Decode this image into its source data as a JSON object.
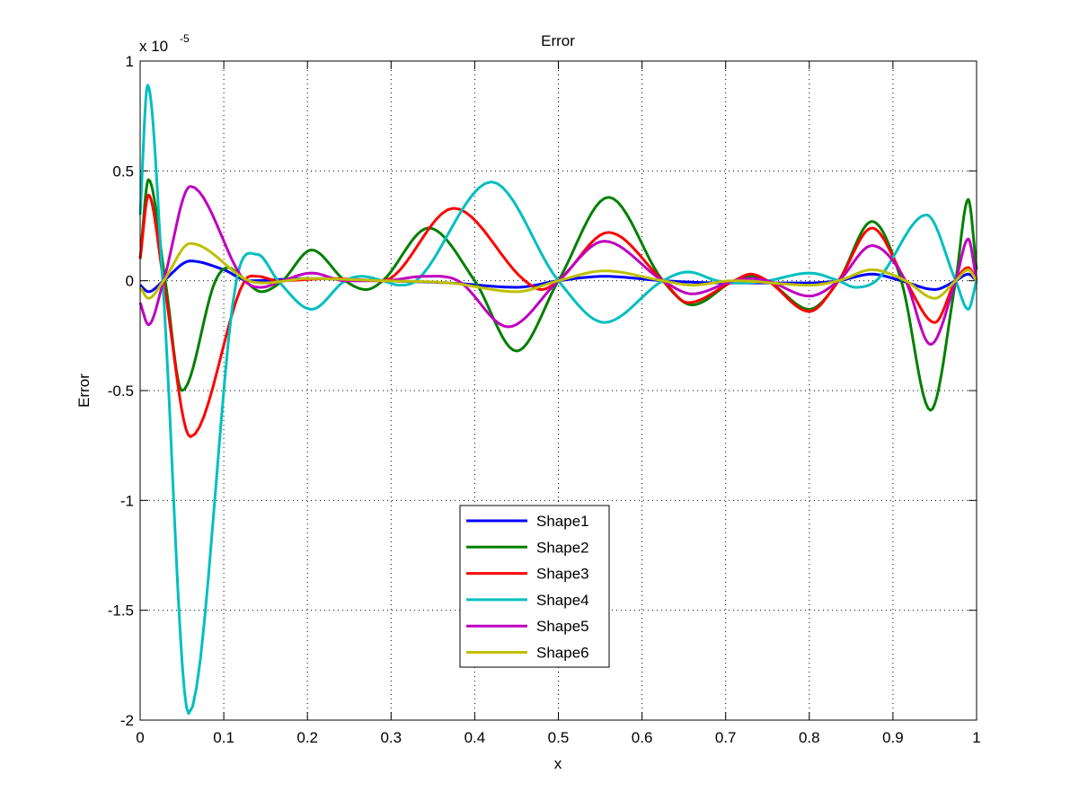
{
  "chart_data": {
    "type": "line",
    "title": "Error",
    "xlabel": "x",
    "ylabel": "Error",
    "y_exponent_base": "x 10",
    "y_exponent_power": "-5",
    "xlim": [
      0,
      1
    ],
    "ylim": [
      -2,
      1
    ],
    "y_units_scale": 1e-05,
    "grid": true,
    "legend_position": "bottom-center",
    "xticks": [
      0,
      0.1,
      0.2,
      0.3,
      0.4,
      0.5,
      0.6,
      0.7,
      0.8,
      0.9,
      1
    ],
    "xtick_labels": [
      "0",
      "0.1",
      "0.2",
      "0.3",
      "0.4",
      "0.5",
      "0.6",
      "0.7",
      "0.8",
      "0.9",
      "1"
    ],
    "yticks": [
      -2,
      -1.5,
      -1,
      -0.5,
      0,
      0.5,
      1
    ],
    "ytick_labels": [
      "-2",
      "-1.5",
      "-1",
      "-0.5",
      "0",
      "0.5",
      "1"
    ],
    "series": [
      {
        "name": "Shape1",
        "color": "#0000ff",
        "x": [
          0,
          0.01,
          0.028,
          0.06,
          0.1,
          0.13,
          0.2,
          0.29,
          0.37,
          0.45,
          0.5,
          0.555,
          0.625,
          0.7,
          0.8,
          0.835,
          0.875,
          0.91,
          0.95,
          0.975,
          0.99,
          1
        ],
        "y": [
          -0.02,
          -0.05,
          0,
          0.09,
          0.05,
          0,
          0.01,
          0,
          -0.01,
          -0.03,
          0,
          0.02,
          0,
          -0.01,
          -0.01,
          0,
          0.03,
          0,
          -0.04,
          0,
          0.03,
          0
        ]
      },
      {
        "name": "Shape2",
        "color": "#008000",
        "x": [
          0,
          0.01,
          0.03,
          0.05,
          0.09,
          0.105,
          0.125,
          0.145,
          0.17,
          0.205,
          0.245,
          0.27,
          0.29,
          0.345,
          0.4,
          0.45,
          0.5,
          0.56,
          0.625,
          0.66,
          0.71,
          0.73,
          0.75,
          0.8,
          0.835,
          0.875,
          0.91,
          0.945,
          0.975,
          0.99,
          1
        ],
        "y": [
          0.1,
          0.46,
          0,
          -0.5,
          0,
          0.06,
          0,
          -0.05,
          0,
          0.14,
          0,
          -0.04,
          0,
          0.24,
          0,
          -0.32,
          0,
          0.38,
          0,
          -0.11,
          0,
          0.02,
          0,
          -0.13,
          0,
          0.27,
          0,
          -0.59,
          0,
          0.37,
          0.05
        ]
      },
      {
        "name": "Shape3",
        "color": "#ff0000",
        "x": [
          0,
          0.01,
          0.028,
          0.06,
          0.125,
          0.14,
          0.165,
          0.23,
          0.29,
          0.375,
          0.46,
          0.48,
          0.5,
          0.56,
          0.625,
          0.655,
          0.71,
          0.73,
          0.75,
          0.8,
          0.835,
          0.875,
          0.915,
          0.95,
          0.975,
          0.99,
          1
        ],
        "y": [
          0.1,
          0.39,
          0,
          -0.71,
          0,
          0.02,
          0,
          0.01,
          0,
          0.33,
          0,
          -0.04,
          0,
          0.22,
          0,
          -0.1,
          0,
          0.03,
          0,
          -0.14,
          0,
          0.24,
          0,
          -0.19,
          0,
          0.06,
          0
        ]
      },
      {
        "name": "Shape4",
        "color": "#00bfbf",
        "x": [
          0,
          0.009,
          0.027,
          0.058,
          0.115,
          0.14,
          0.165,
          0.205,
          0.245,
          0.265,
          0.29,
          0.31,
          0.33,
          0.42,
          0.5,
          0.555,
          0.625,
          0.655,
          0.69,
          0.72,
          0.75,
          0.8,
          0.835,
          0.855,
          0.88,
          0.94,
          0.975,
          0.99,
          1
        ],
        "y": [
          0.3,
          0.89,
          0,
          -1.97,
          0,
          0.12,
          0,
          -0.13,
          0,
          0.02,
          0,
          -0.02,
          0,
          0.45,
          0,
          -0.19,
          0,
          0.04,
          0,
          -0.01,
          0,
          0.035,
          0,
          -0.03,
          0,
          0.3,
          0,
          -0.13,
          0
        ]
      },
      {
        "name": "Shape5",
        "color": "#bf00bf",
        "x": [
          0,
          0.01,
          0.028,
          0.06,
          0.125,
          0.145,
          0.17,
          0.205,
          0.245,
          0.29,
          0.34,
          0.38,
          0.44,
          0.5,
          0.555,
          0.625,
          0.66,
          0.71,
          0.73,
          0.75,
          0.8,
          0.835,
          0.875,
          0.915,
          0.945,
          0.975,
          0.99,
          1
        ],
        "y": [
          -0.1,
          -0.2,
          0,
          0.43,
          0,
          -0.03,
          0,
          0.035,
          0,
          0,
          0.02,
          0,
          -0.21,
          0,
          0.18,
          0,
          -0.06,
          0,
          0.01,
          0,
          -0.07,
          0,
          0.16,
          0,
          -0.29,
          0,
          0.19,
          0
        ]
      },
      {
        "name": "Shape6",
        "color": "#bfbf00",
        "x": [
          0,
          0.01,
          0.028,
          0.06,
          0.13,
          0.15,
          0.2,
          0.29,
          0.37,
          0.45,
          0.5,
          0.555,
          0.625,
          0.66,
          0.71,
          0.8,
          0.835,
          0.875,
          0.915,
          0.95,
          0.975,
          0.99,
          1
        ],
        "y": [
          -0.03,
          -0.08,
          0,
          0.17,
          0,
          -0.01,
          0.01,
          0,
          -0.01,
          -0.05,
          0,
          0.045,
          0,
          -0.02,
          0,
          -0.02,
          0,
          0.05,
          0,
          -0.08,
          0,
          0.05,
          0
        ]
      }
    ]
  }
}
